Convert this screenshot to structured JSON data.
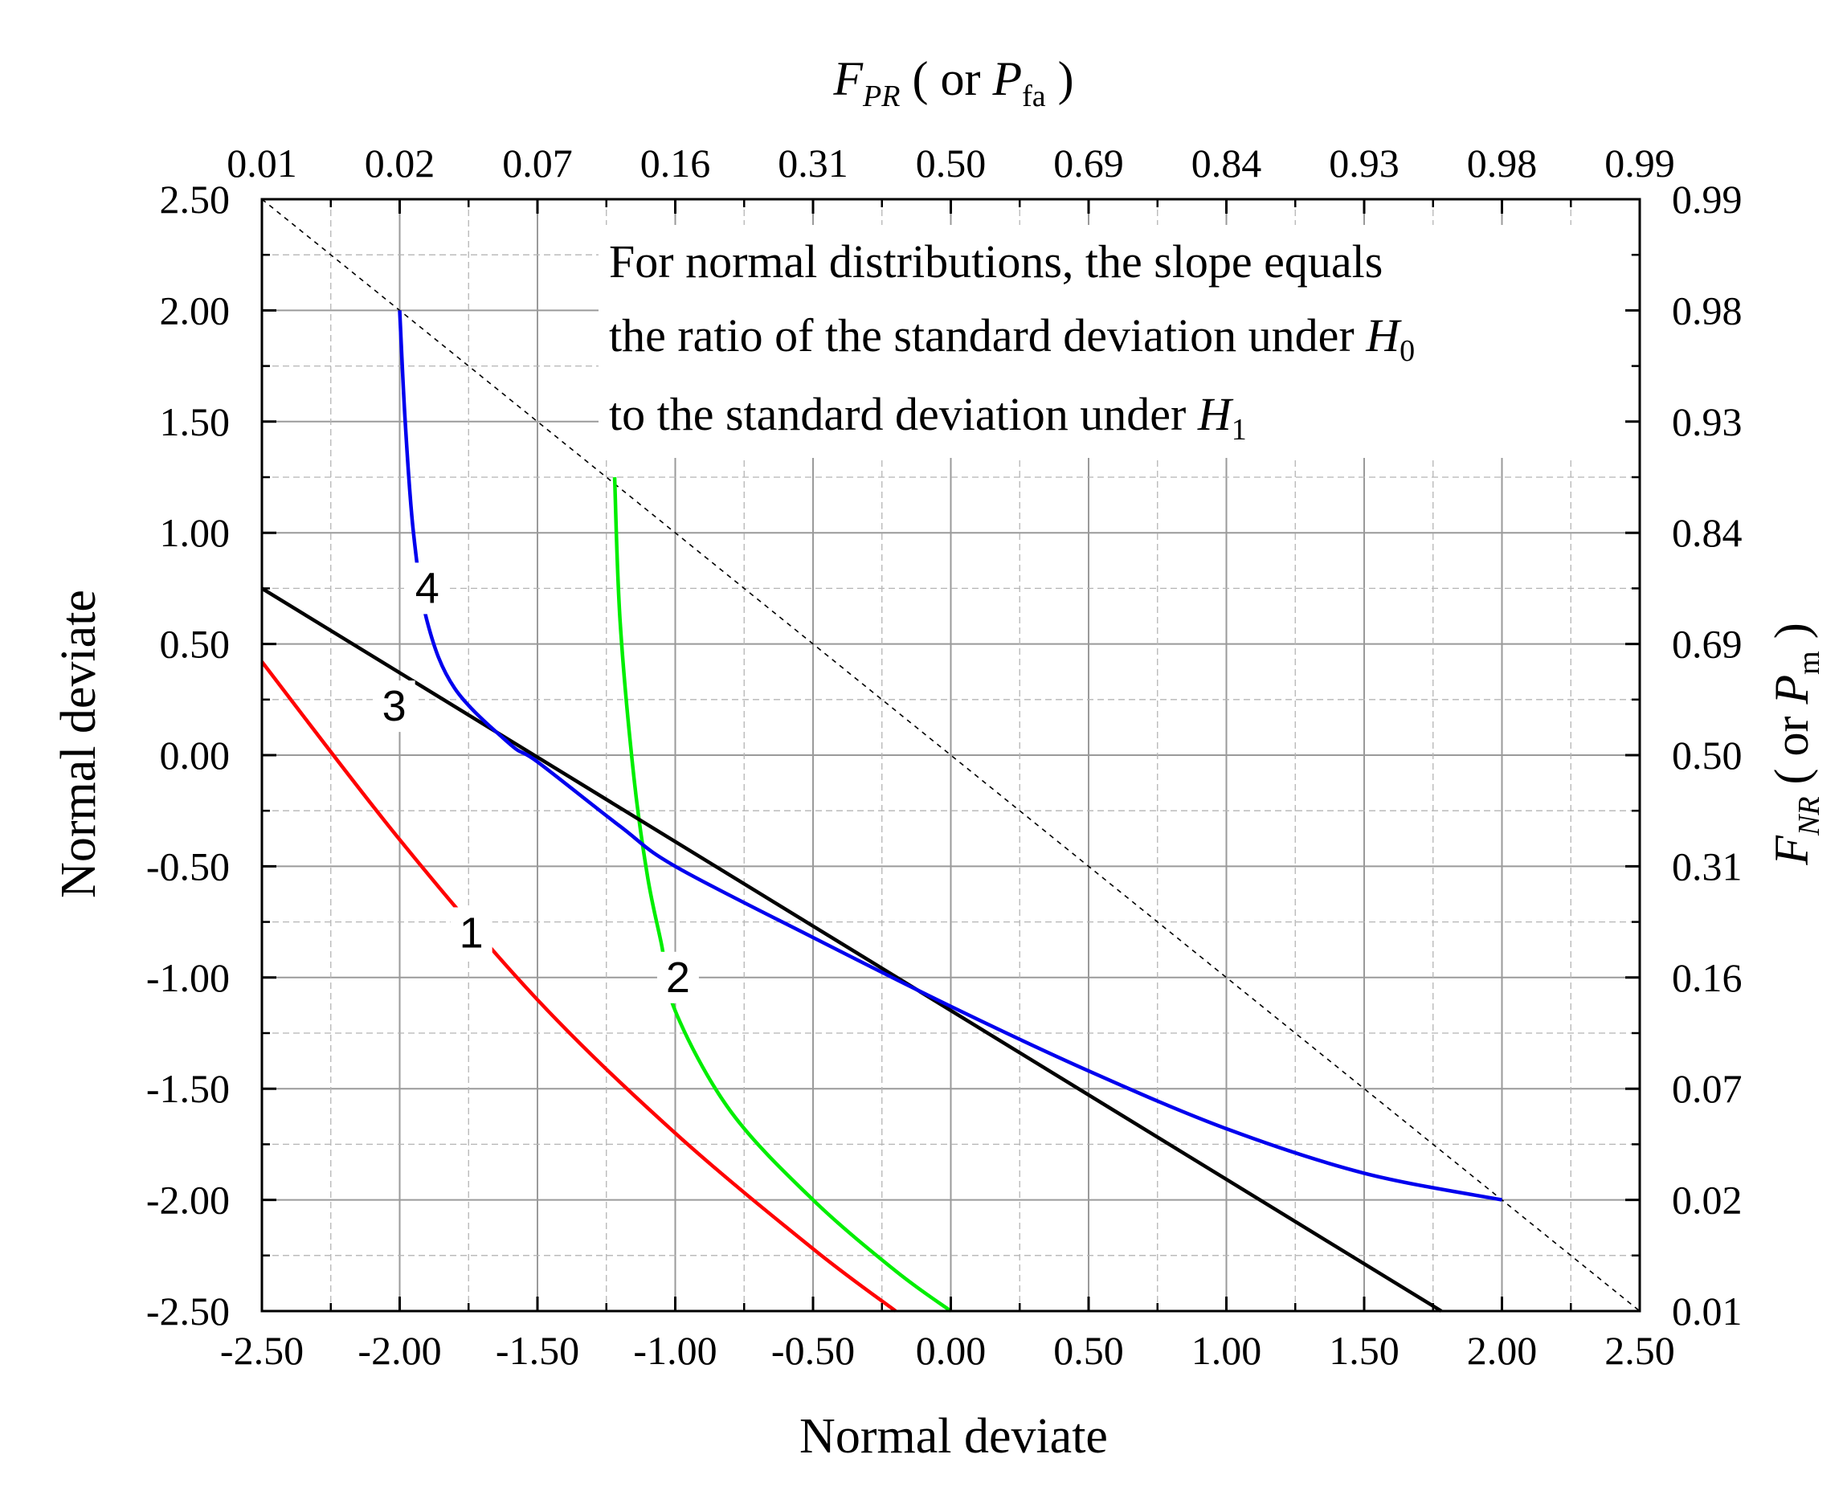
{
  "chart_data": {
    "type": "line",
    "x_axis": {
      "label": "Normal deviate",
      "range": [
        -2.5,
        2.5
      ],
      "ticks": [
        "-2.50",
        "-2.00",
        "-1.50",
        "-1.00",
        "-0.50",
        "0.00",
        "0.50",
        "1.00",
        "1.50",
        "2.00",
        "2.50"
      ]
    },
    "y_axis": {
      "label": "Normal deviate",
      "range": [
        -2.5,
        2.5
      ],
      "ticks": [
        "-2.50",
        "-2.00",
        "-1.50",
        "-1.00",
        "-0.50",
        "0.00",
        "0.50",
        "1.00",
        "1.50",
        "2.00",
        "2.50"
      ]
    },
    "top_axis": {
      "label_main": "F",
      "label_sub": "PR",
      "label_mid": " ( or ",
      "label_main2": "P",
      "label_sub2": "fa",
      "label_end": " )",
      "ticks": [
        "0.01",
        "0.02",
        "0.07",
        "0.16",
        "0.31",
        "0.50",
        "0.69",
        "0.84",
        "0.93",
        "0.98",
        "0.99"
      ]
    },
    "right_axis": {
      "label_main": "F",
      "label_sub": "NR",
      "label_mid": " ( or ",
      "label_main2": "P",
      "label_sub2": "m",
      "label_end": " )",
      "ticks": [
        "0.01",
        "0.02",
        "0.07",
        "0.16",
        "0.31",
        "0.50",
        "0.69",
        "0.84",
        "0.93",
        "0.98",
        "0.99"
      ]
    },
    "annotation": {
      "line1": "For normal distributions, the slope equals",
      "line2_main": "the ratio of the standard deviation under ",
      "line2_var": "H",
      "line2_sub": "0",
      "line3_main": "to the standard deviation under ",
      "line3_var": "H",
      "line3_sub": "1"
    },
    "series": [
      {
        "name": "1",
        "color": "#ff0000",
        "x": [
          -2.5,
          -2.0,
          -1.5,
          -1.0,
          -0.5,
          -0.2
        ],
        "y": [
          0.42,
          -0.38,
          -1.1,
          -1.7,
          -2.22,
          -2.5
        ]
      },
      {
        "name": "2",
        "color": "#00ee00",
        "x": [
          -1.22,
          -1.2,
          -1.15,
          -1.1,
          -1.05,
          -1.0,
          -0.8,
          -0.5,
          -0.2,
          0.0
        ],
        "y": [
          1.25,
          0.6,
          -0.1,
          -0.55,
          -0.85,
          -1.15,
          -1.6,
          -2.0,
          -2.32,
          -2.5
        ]
      },
      {
        "name": "3",
        "color": "#000000",
        "x": [
          -2.5,
          1.78
        ],
        "y": [
          0.75,
          -2.5
        ]
      },
      {
        "name": "4",
        "color": "#0000ee",
        "x": [
          -2.0,
          -1.98,
          -1.95,
          -1.9,
          -1.8,
          -1.6,
          -1.5,
          -1.2,
          -1.0,
          -0.5,
          0.0,
          0.5,
          1.0,
          1.5,
          2.0
        ],
        "y": [
          2.0,
          1.5,
          1.0,
          0.6,
          0.3,
          0.05,
          -0.03,
          -0.32,
          -0.5,
          -0.82,
          -1.13,
          -1.42,
          -1.68,
          -1.88,
          -2.0
        ]
      }
    ],
    "reference_line": {
      "x": [
        -2.5,
        2.5
      ],
      "y": [
        2.5,
        -2.5
      ],
      "style": "dashed"
    },
    "curve_labels": [
      {
        "text": "1",
        "x": -1.74,
        "y": -0.8
      },
      {
        "text": "2",
        "x": -0.99,
        "y": -1.0
      },
      {
        "text": "3",
        "x": -2.02,
        "y": 0.22
      },
      {
        "text": "4",
        "x": -1.9,
        "y": 0.75
      }
    ],
    "grid": true
  }
}
